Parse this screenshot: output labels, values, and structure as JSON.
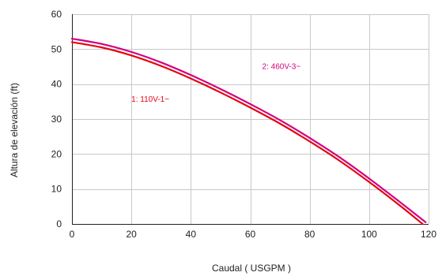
{
  "chart_data": {
    "type": "line",
    "xlabel": "Caudal ( USGPM )",
    "ylabel": "Altura de elevación (ft)",
    "xlim": [
      0,
      120
    ],
    "ylim": [
      0,
      60
    ],
    "xticks": [
      0,
      20,
      40,
      60,
      80,
      100,
      120
    ],
    "yticks": [
      0,
      10,
      20,
      30,
      40,
      50,
      60
    ],
    "x_tick_labels": [
      "0",
      "20",
      "40",
      "60",
      "80",
      "100",
      "120"
    ],
    "y_tick_labels": [
      "0",
      "10",
      "20",
      "30",
      "40",
      "50",
      "60"
    ],
    "grid": true,
    "series": [
      {
        "name": "1: 110V-1~",
        "color": "#e30613",
        "x": [
          0,
          10,
          20,
          30,
          40,
          50,
          60,
          70,
          80,
          90,
          100,
          110,
          118
        ],
        "y": [
          52,
          50.5,
          48.2,
          45.2,
          41.6,
          37.6,
          33.3,
          28.7,
          23.6,
          18.1,
          12,
          5.5,
          0
        ]
      },
      {
        "name": "2: 460V-3~",
        "color": "#d4007f",
        "x": [
          0,
          10,
          20,
          30,
          40,
          50,
          60,
          70,
          80,
          90,
          100,
          110,
          119
        ],
        "y": [
          53,
          51.5,
          49.2,
          46.2,
          42.6,
          38.6,
          34.3,
          29.7,
          24.6,
          19.1,
          13,
          6.5,
          0.5
        ]
      }
    ]
  }
}
